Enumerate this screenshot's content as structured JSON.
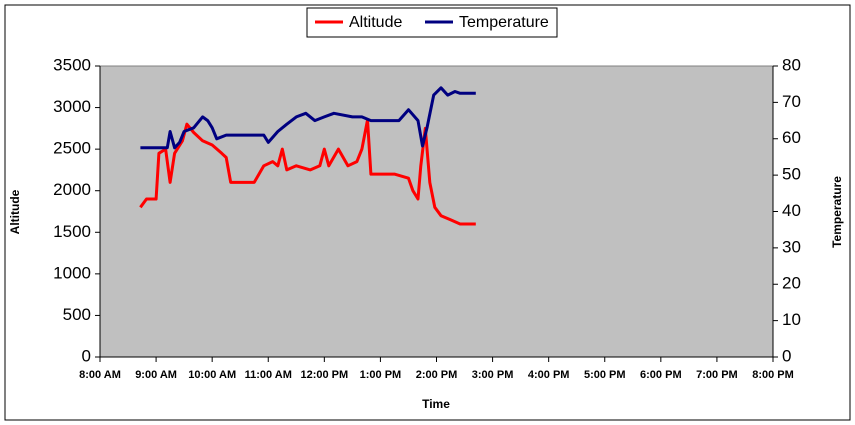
{
  "chart_data": {
    "type": "line",
    "xlabel": "Time",
    "ylabel": "Altitude",
    "y2label": "Temperature",
    "xlim": [
      8,
      20
    ],
    "xticks": [
      {
        "value": 8,
        "label": "8:00 AM"
      },
      {
        "value": 9,
        "label": "9:00 AM"
      },
      {
        "value": 10,
        "label": "10:00 AM"
      },
      {
        "value": 11,
        "label": "11:00 AM"
      },
      {
        "value": 12,
        "label": "12:00 PM"
      },
      {
        "value": 13,
        "label": "1:00 PM"
      },
      {
        "value": 14,
        "label": "2:00 PM"
      },
      {
        "value": 15,
        "label": "3:00 PM"
      },
      {
        "value": 16,
        "label": "4:00 PM"
      },
      {
        "value": 17,
        "label": "5:00 PM"
      },
      {
        "value": 18,
        "label": "6:00 PM"
      },
      {
        "value": 19,
        "label": "7:00 PM"
      },
      {
        "value": 20,
        "label": "8:00 PM"
      }
    ],
    "ylim": [
      0,
      3500
    ],
    "yticks": [
      0,
      500,
      1000,
      1500,
      2000,
      2500,
      3000,
      3500
    ],
    "y2lim": [
      0,
      80
    ],
    "y2ticks": [
      0,
      10,
      20,
      30,
      40,
      50,
      60,
      70,
      80
    ],
    "grid": false,
    "legend": "top",
    "series": [
      {
        "name": "Altitude",
        "color": "#ff0000",
        "axis": "y",
        "x": [
          8.72,
          8.83,
          9.0,
          9.05,
          9.17,
          9.25,
          9.33,
          9.47,
          9.55,
          9.67,
          9.83,
          10.0,
          10.17,
          10.25,
          10.33,
          10.75,
          10.92,
          11.08,
          11.17,
          11.25,
          11.33,
          11.5,
          11.75,
          11.92,
          12.0,
          12.08,
          12.25,
          12.42,
          12.58,
          12.67,
          12.77,
          12.83,
          13.25,
          13.5,
          13.58,
          13.67,
          13.72,
          13.8,
          13.88,
          13.97,
          14.08,
          14.25,
          14.42,
          14.7
        ],
        "values": [
          1800,
          1900,
          1900,
          2450,
          2500,
          2100,
          2450,
          2600,
          2800,
          2700,
          2600,
          2550,
          2450,
          2400,
          2100,
          2100,
          2300,
          2350,
          2300,
          2500,
          2250,
          2300,
          2250,
          2300,
          2500,
          2300,
          2500,
          2300,
          2350,
          2500,
          2850,
          2200,
          2200,
          2150,
          2000,
          1900,
          2300,
          2750,
          2100,
          1800,
          1700,
          1650,
          1600,
          1600
        ]
      },
      {
        "name": "Temperature",
        "color": "#000080",
        "axis": "y2",
        "x": [
          8.72,
          9.2,
          9.25,
          9.33,
          9.42,
          9.5,
          9.67,
          9.83,
          9.92,
          10.0,
          10.08,
          10.25,
          10.92,
          11.0,
          11.17,
          11.33,
          11.5,
          11.67,
          11.83,
          12.0,
          12.17,
          12.5,
          12.67,
          12.83,
          13.33,
          13.5,
          13.67,
          13.75,
          13.83,
          13.95,
          14.08,
          14.2,
          14.33,
          14.42,
          14.7
        ],
        "values": [
          57.5,
          57.5,
          62,
          57.5,
          59,
          62,
          63,
          66,
          65,
          63,
          60,
          61,
          61,
          59,
          62,
          64,
          66,
          67,
          65,
          66,
          67,
          66,
          66,
          65,
          65,
          68,
          65,
          58,
          63,
          72,
          74,
          72,
          73,
          72.5,
          72.5
        ]
      }
    ]
  }
}
